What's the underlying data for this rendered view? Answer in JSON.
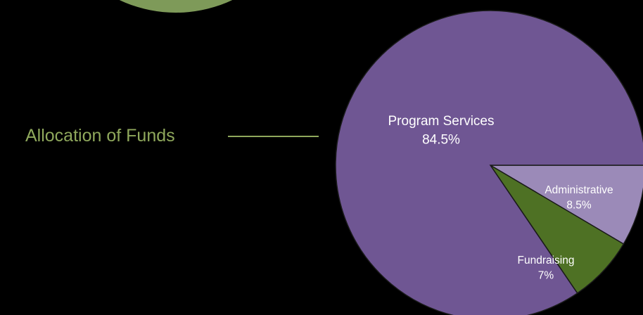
{
  "caption": "Allocation of Funds",
  "colors": {
    "background": "#000000",
    "caption_text": "#8fa85c",
    "caption_rule": "#8fa85c",
    "decor_circle": "#7e9a59",
    "slice_outline": "#1a1a1a"
  },
  "chart_data": {
    "type": "pie",
    "title": "",
    "start_angle_deg": 0,
    "direction": "clockwise",
    "slices": [
      {
        "label": "Administrative",
        "value_text": "8.5%",
        "value": 8.5,
        "color": "#9b8ab8"
      },
      {
        "label": "Fundraising",
        "value_text": "7%",
        "value": 7,
        "color": "#4e7124"
      },
      {
        "label": "Program Services",
        "value_text": "84.5%",
        "value": 84.5,
        "color": "#6f5693"
      }
    ]
  }
}
